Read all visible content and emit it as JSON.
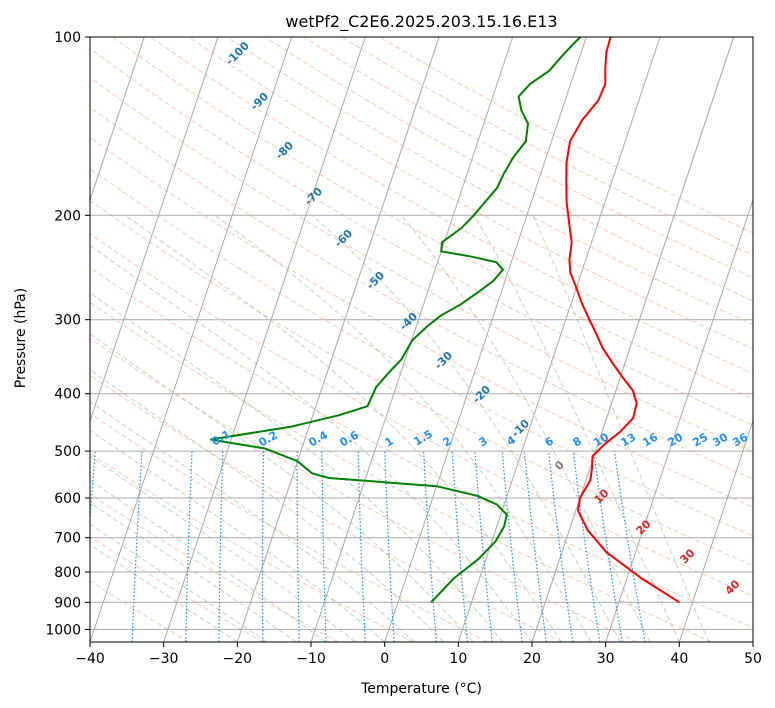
{
  "chart_data": {
    "type": "skew-t log-p diagram",
    "title": "wetPf2_C2E6.2025.203.15.16.E13",
    "xlabel": "Temperature (°C)",
    "ylabel": "Pressure (hPa)",
    "xlim": [
      -40,
      50
    ],
    "ylim": [
      1050,
      100
    ],
    "y_scale": "log",
    "x_ticks": [
      "−40",
      "−30",
      "−20",
      "−10",
      "0",
      "10",
      "20",
      "30",
      "40",
      "50"
    ],
    "y_ticks": [
      "100",
      "200",
      "300",
      "400",
      "500",
      "600",
      "700",
      "800",
      "900",
      "1000"
    ],
    "grid": true,
    "colors": {
      "temperature": "#ff0000",
      "dewpoint": "#008000",
      "isotherm": "#aaaaaa",
      "dry_adiabat": "#ffa07a",
      "moist_adiabat": "#8fbc8f",
      "mixing_ratio": "#1e90ff",
      "dry_adiabat_label": "#d62728",
      "moist_label": "#1f77b4",
      "mixing_label": "#1e90ff",
      "zero_label": "#808080"
    },
    "series": [
      {
        "key": "temperature",
        "points": [
          [
            38.2,
            900
          ],
          [
            32,
            820
          ],
          [
            26,
            740
          ],
          [
            22.5,
            680
          ],
          [
            20.3,
            630
          ],
          [
            20,
            600
          ],
          [
            20.6,
            560
          ],
          [
            20.3,
            535
          ],
          [
            19.8,
            510
          ],
          [
            21,
            485
          ],
          [
            22.4,
            465
          ],
          [
            23.6,
            440
          ],
          [
            23.4,
            415
          ],
          [
            22.3,
            395
          ],
          [
            20.3,
            375
          ],
          [
            18.3,
            355
          ],
          [
            16.3,
            335
          ],
          [
            14.6,
            315
          ],
          [
            13,
            298
          ],
          [
            11.3,
            280
          ],
          [
            9.8,
            263
          ],
          [
            8.5,
            250
          ],
          [
            7.8,
            238
          ],
          [
            7.3,
            222
          ],
          [
            6,
            205
          ],
          [
            4.8,
            190
          ],
          [
            3.8,
            175
          ],
          [
            3,
            163
          ],
          [
            2.5,
            150
          ],
          [
            3.2,
            138
          ],
          [
            4.5,
            128
          ],
          [
            4.7,
            120
          ],
          [
            4,
            113
          ],
          [
            3.4,
            106
          ],
          [
            3.3,
            100
          ]
        ]
      },
      {
        "key": "dewpoint",
        "points": [
          [
            4.5,
            900
          ],
          [
            5,
            880
          ],
          [
            6.5,
            820
          ],
          [
            9,
            760
          ],
          [
            10.5,
            710
          ],
          [
            11,
            670
          ],
          [
            10.8,
            640
          ],
          [
            9,
            615
          ],
          [
            6,
            595
          ],
          [
            0,
            573
          ],
          [
            -15,
            555
          ],
          [
            -17.5,
            545
          ],
          [
            -20,
            520
          ],
          [
            -25,
            495
          ],
          [
            -32.8,
            478
          ],
          [
            -22.5,
            455
          ],
          [
            -16.5,
            435
          ],
          [
            -13,
            420
          ],
          [
            -12.7,
            390
          ],
          [
            -11.7,
            370
          ],
          [
            -10.5,
            350
          ],
          [
            -9.9,
            325
          ],
          [
            -8.5,
            308
          ],
          [
            -7.1,
            295
          ],
          [
            -5,
            283
          ],
          [
            -3.2,
            270
          ],
          [
            -1.6,
            258
          ],
          [
            -0.8,
            247
          ],
          [
            -2,
            240
          ],
          [
            -5.5,
            235
          ],
          [
            -10,
            230
          ],
          [
            -10.3,
            222
          ],
          [
            -8.3,
            210
          ],
          [
            -7.2,
            200
          ],
          [
            -6.3,
            190
          ],
          [
            -5.3,
            180
          ],
          [
            -5,
            170
          ],
          [
            -4.5,
            160
          ],
          [
            -3.5,
            150
          ],
          [
            -4,
            140
          ],
          [
            -5.5,
            133
          ],
          [
            -6.5,
            126
          ],
          [
            -5.5,
            120
          ],
          [
            -3.5,
            114
          ],
          [
            -2.5,
            108
          ],
          [
            -1.5,
            103
          ],
          [
            -0.8,
            100
          ]
        ]
      }
    ],
    "dry_adiabat_labels": [
      "10",
      "20",
      "30",
      "40"
    ],
    "moist_adiabat_labels": [
      "-100",
      "-90",
      "-80",
      "-70",
      "-60",
      "-50",
      "-40",
      "-30",
      "-20",
      "-10",
      "0"
    ],
    "mixing_ratio_labels": [
      "0.1",
      "0.2",
      "0.4",
      "0.6",
      "1",
      "1.5",
      "2",
      "3",
      "4",
      "6",
      "8",
      "10",
      "13",
      "16",
      "20",
      "25",
      "30",
      "36"
    ]
  }
}
